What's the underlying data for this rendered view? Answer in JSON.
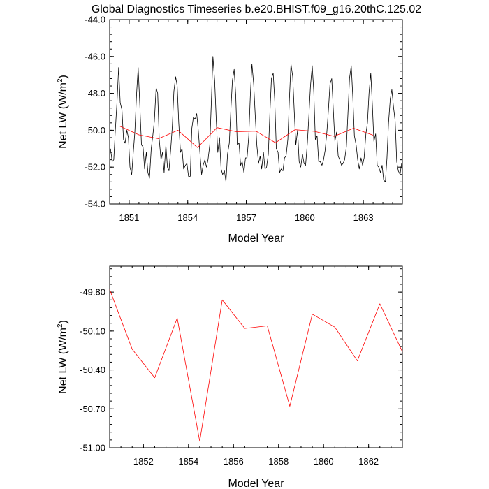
{
  "title": "Global Diagnostics Timeseries b.e20.BHIST.f09_g16.20thC.125.02",
  "chart_data": [
    {
      "type": "line",
      "title": "Global Diagnostics Timeseries b.e20.BHIST.f09_g16.20thC.125.02",
      "xlabel": "Model Year",
      "ylabel": "Net LW (W/m²)",
      "ylabel_main": "Net LW (W/m",
      "ylabel_sup": "2",
      "ylabel_close": ")",
      "xlim": [
        1850,
        1865
      ],
      "ylim": [
        -54.0,
        -44.0
      ],
      "xticks": [
        1851,
        1854,
        1857,
        1860,
        1863
      ],
      "xtick_labels": [
        "1851",
        "1854",
        "1857",
        "1860",
        "1863"
      ],
      "yticks": [
        -54.0,
        -52.0,
        -50.0,
        -48.0,
        -46.0,
        -44.0
      ],
      "ytick_labels": [
        "-54.0",
        "-52.0",
        "-50.0",
        "-48.0",
        "-46.0",
        "-44.0"
      ],
      "series": [
        {
          "color": "#000000",
          "x": [
            1850.04,
            1850.13,
            1850.21,
            1850.29,
            1850.38,
            1850.46,
            1850.54,
            1850.63,
            1850.71,
            1850.79,
            1850.88,
            1850.96,
            1851.04,
            1851.13,
            1851.21,
            1851.29,
            1851.38,
            1851.46,
            1851.54,
            1851.63,
            1851.71,
            1851.79,
            1851.88,
            1851.96,
            1852.04,
            1852.13,
            1852.21,
            1852.29,
            1852.38,
            1852.46,
            1852.54,
            1852.63,
            1852.71,
            1852.79,
            1852.88,
            1852.96,
            1853.04,
            1853.13,
            1853.21,
            1853.29,
            1853.38,
            1853.46,
            1853.54,
            1853.63,
            1853.71,
            1853.79,
            1853.88,
            1853.96,
            1854.04,
            1854.13,
            1854.21,
            1854.29,
            1854.38,
            1854.46,
            1854.54,
            1854.63,
            1854.71,
            1854.79,
            1854.88,
            1854.96,
            1855.04,
            1855.13,
            1855.21,
            1855.29,
            1855.38,
            1855.46,
            1855.54,
            1855.63,
            1855.71,
            1855.79,
            1855.88,
            1855.96,
            1856.04,
            1856.13,
            1856.21,
            1856.29,
            1856.38,
            1856.46,
            1856.54,
            1856.63,
            1856.71,
            1856.79,
            1856.88,
            1856.96,
            1857.04,
            1857.13,
            1857.21,
            1857.29,
            1857.38,
            1857.46,
            1857.54,
            1857.63,
            1857.71,
            1857.79,
            1857.88,
            1857.96,
            1858.04,
            1858.13,
            1858.21,
            1858.29,
            1858.38,
            1858.46,
            1858.54,
            1858.63,
            1858.71,
            1858.79,
            1858.88,
            1858.96,
            1859.04,
            1859.13,
            1859.21,
            1859.29,
            1859.38,
            1859.46,
            1859.54,
            1859.63,
            1859.71,
            1859.79,
            1859.88,
            1859.96,
            1860.04,
            1860.13,
            1860.21,
            1860.29,
            1860.38,
            1860.46,
            1860.54,
            1860.63,
            1860.71,
            1860.79,
            1860.88,
            1860.96,
            1861.04,
            1861.13,
            1861.21,
            1861.29,
            1861.38,
            1861.46,
            1861.54,
            1861.63,
            1861.71,
            1861.79,
            1861.88,
            1861.96,
            1862.04,
            1862.13,
            1862.21,
            1862.29,
            1862.38,
            1862.46,
            1862.54,
            1862.63,
            1862.71,
            1862.79,
            1862.88,
            1862.96,
            1863.04,
            1863.13,
            1863.21,
            1863.29,
            1863.38,
            1863.46,
            1863.54,
            1863.63,
            1863.71,
            1863.79,
            1863.88,
            1863.96,
            1864.04,
            1864.13,
            1864.21,
            1864.29,
            1864.38,
            1864.46,
            1864.54,
            1864.63,
            1864.71,
            1864.79,
            1864.88,
            1864.96
          ],
          "values": [
            -51.0,
            -51.7,
            -51.6,
            -50.0,
            -48.4,
            -46.6,
            -48.5,
            -48.9,
            -50.5,
            -50.7,
            -50.0,
            -50.4,
            -52.0,
            -52.4,
            -51.2,
            -50.1,
            -48.0,
            -46.6,
            -48.5,
            -50.8,
            -50.9,
            -52.1,
            -51.2,
            -52.3,
            -52.6,
            -51.0,
            -50.3,
            -49.5,
            -47.7,
            -48.0,
            -50.5,
            -51.6,
            -51.2,
            -52.3,
            -50.8,
            -52.0,
            -52.2,
            -51.0,
            -49.8,
            -47.9,
            -47.1,
            -47.6,
            -49.6,
            -51.2,
            -51.0,
            -52.1,
            -51.9,
            -51.8,
            -52.5,
            -52.5,
            -49.9,
            -49.3,
            -49.4,
            -49.1,
            -50.0,
            -51.3,
            -52.4,
            -51.9,
            -51.6,
            -52.0,
            -51.6,
            -50.8,
            -48.5,
            -46.0,
            -47.3,
            -49.4,
            -51.2,
            -50.4,
            -52.1,
            -52.4,
            -52.2,
            -52.8,
            -51.3,
            -50.7,
            -48.9,
            -47.3,
            -46.7,
            -48.1,
            -50.8,
            -50.7,
            -51.9,
            -51.7,
            -52.3,
            -51.5,
            -51.5,
            -50.3,
            -48.1,
            -46.4,
            -47.5,
            -49.2,
            -50.8,
            -51.8,
            -51.4,
            -52.1,
            -51.2,
            -52.1,
            -52.0,
            -51.3,
            -49.1,
            -47.2,
            -46.9,
            -48.4,
            -51.0,
            -51.2,
            -52.3,
            -52.1,
            -52.2,
            -51.5,
            -51.4,
            -50.5,
            -48.3,
            -46.4,
            -47.1,
            -49.0,
            -50.8,
            -50.0,
            -51.7,
            -52.0,
            -51.3,
            -51.8,
            -51.9,
            -50.7,
            -49.2,
            -47.6,
            -46.5,
            -47.9,
            -50.5,
            -50.3,
            -51.7,
            -51.7,
            -51.9,
            -51.6,
            -51.1,
            -50.1,
            -48.9,
            -47.5,
            -47.2,
            -48.9,
            -50.6,
            -50.1,
            -51.4,
            -51.6,
            -51.9,
            -51.8,
            -51.6,
            -50.9,
            -49.1,
            -47.2,
            -46.5,
            -48.2,
            -50.3,
            -50.8,
            -51.6,
            -52.1,
            -51.5,
            -51.9,
            -51.5,
            -50.2,
            -49.6,
            -48.0,
            -46.9,
            -48.6,
            -50.6,
            -50.2,
            -51.9,
            -52.0,
            -52.3,
            -51.9,
            -52.7,
            -52.8,
            -51.5,
            -49.6,
            -48.3,
            -47.8,
            -48.7,
            -49.5,
            -51.7,
            -52.2,
            -52.4,
            -51.8
          ]
        },
        {
          "color": "#ff0000",
          "x": [
            1850.5,
            1851.5,
            1852.5,
            1853.5,
            1854.5,
            1855.5,
            1856.5,
            1857.5,
            1858.5,
            1859.5,
            1860.5,
            1861.5,
            1862.5,
            1863.5
          ],
          "values": [
            -49.77,
            -50.25,
            -50.46,
            -50.0,
            -50.94,
            -49.86,
            -50.08,
            -50.05,
            -50.68,
            -49.97,
            -50.06,
            -50.33,
            -49.89,
            -50.27
          ]
        }
      ]
    },
    {
      "type": "line",
      "xlabel": "Model Year",
      "ylabel": "Net LW (W/m²)",
      "ylabel_main": "Net LW (W/m",
      "ylabel_sup": "2",
      "ylabel_close": ")",
      "xlim": [
        1850.5,
        1863.5
      ],
      "ylim": [
        -51.0,
        -49.6
      ],
      "xticks": [
        1852,
        1854,
        1856,
        1858,
        1860,
        1862
      ],
      "xtick_labels": [
        "1852",
        "1854",
        "1856",
        "1858",
        "1860",
        "1862"
      ],
      "yticks": [
        -51.0,
        -50.7,
        -50.4,
        -50.1,
        -49.8
      ],
      "ytick_labels": [
        "-51.00",
        "-50.70",
        "-50.40",
        "-50.10",
        "-49.80"
      ],
      "series": [
        {
          "color": "#ff0000",
          "x": [
            1850.5,
            1851.5,
            1852.5,
            1853.5,
            1854.5,
            1855.5,
            1856.5,
            1857.5,
            1858.5,
            1859.5,
            1860.5,
            1861.5,
            1862.5,
            1863.5
          ],
          "values": [
            -49.78,
            -50.24,
            -50.46,
            -50.0,
            -50.95,
            -49.86,
            -50.08,
            -50.06,
            -50.68,
            -49.97,
            -50.07,
            -50.33,
            -49.89,
            -50.26
          ]
        }
      ]
    }
  ]
}
